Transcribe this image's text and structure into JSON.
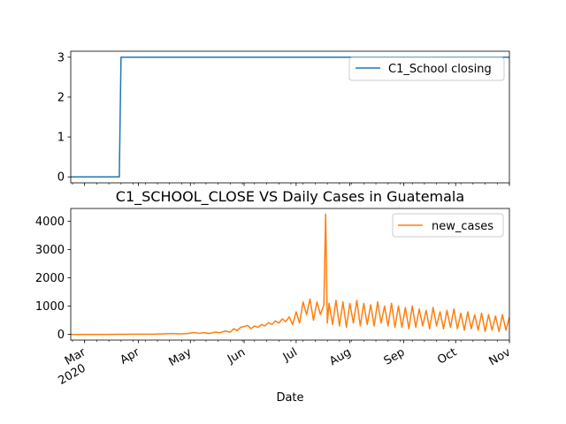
{
  "chart_data": [
    {
      "type": "line",
      "title": "",
      "xlabel": "",
      "ylabel": "",
      "ylim": [
        -0.15,
        3.15
      ],
      "yticks": [
        0,
        1,
        2,
        3
      ],
      "legend": {
        "position": "top-right",
        "entries": [
          "C1_School closing"
        ]
      },
      "grid": false,
      "series": [
        {
          "name": "C1_School closing",
          "color": "#1f77b4",
          "x": [
            "2020-02-22",
            "2020-03-21",
            "2020-03-22",
            "2020-11-01"
          ],
          "values": [
            0,
            0,
            3,
            3
          ]
        }
      ]
    },
    {
      "type": "line",
      "title": "C1_SCHOOL_CLOSE VS Daily Cases in Guatemala",
      "xlabel": "Date",
      "ylabel": "",
      "ylim": [
        -200,
        4450
      ],
      "yticks": [
        0,
        1000,
        2000,
        3000,
        4000
      ],
      "legend": {
        "position": "top-right",
        "entries": [
          "new_cases"
        ]
      },
      "grid": false,
      "x_tick_labels": [
        {
          "date": "2020-03-01",
          "label": "Mar",
          "sub": "2020"
        },
        {
          "date": "2020-04-01",
          "label": "Apr",
          "sub": ""
        },
        {
          "date": "2020-05-01",
          "label": "May",
          "sub": ""
        },
        {
          "date": "2020-06-01",
          "label": "Jun",
          "sub": ""
        },
        {
          "date": "2020-07-01",
          "label": "Jul",
          "sub": ""
        },
        {
          "date": "2020-08-01",
          "label": "Aug",
          "sub": ""
        },
        {
          "date": "2020-09-01",
          "label": "Sep",
          "sub": ""
        },
        {
          "date": "2020-10-01",
          "label": "Oct",
          "sub": ""
        },
        {
          "date": "2020-11-01",
          "label": "Nov",
          "sub": ""
        }
      ],
      "series": [
        {
          "name": "new_cases",
          "color": "#ff7f0e",
          "x": [
            "2020-02-22",
            "2020-03-13",
            "2020-03-27",
            "2020-04-10",
            "2020-04-15",
            "2020-04-20",
            "2020-04-25",
            "2020-04-30",
            "2020-05-03",
            "2020-05-06",
            "2020-05-09",
            "2020-05-12",
            "2020-05-15",
            "2020-05-18",
            "2020-05-21",
            "2020-05-24",
            "2020-05-26",
            "2020-05-28",
            "2020-05-30",
            "2020-06-01",
            "2020-06-03",
            "2020-06-05",
            "2020-06-07",
            "2020-06-09",
            "2020-06-11",
            "2020-06-13",
            "2020-06-15",
            "2020-06-17",
            "2020-06-19",
            "2020-06-21",
            "2020-06-23",
            "2020-06-25",
            "2020-06-27",
            "2020-06-29",
            "2020-07-01",
            "2020-07-03",
            "2020-07-05",
            "2020-07-07",
            "2020-07-09",
            "2020-07-11",
            "2020-07-13",
            "2020-07-15",
            "2020-07-17",
            "2020-07-18",
            "2020-07-19",
            "2020-07-20",
            "2020-07-22",
            "2020-07-24",
            "2020-07-26",
            "2020-07-28",
            "2020-07-30",
            "2020-08-01",
            "2020-08-03",
            "2020-08-05",
            "2020-08-07",
            "2020-08-09",
            "2020-08-11",
            "2020-08-13",
            "2020-08-15",
            "2020-08-17",
            "2020-08-19",
            "2020-08-21",
            "2020-08-23",
            "2020-08-25",
            "2020-08-27",
            "2020-08-29",
            "2020-08-31",
            "2020-09-02",
            "2020-09-04",
            "2020-09-06",
            "2020-09-08",
            "2020-09-10",
            "2020-09-12",
            "2020-09-14",
            "2020-09-16",
            "2020-09-18",
            "2020-09-20",
            "2020-09-22",
            "2020-09-24",
            "2020-09-26",
            "2020-09-28",
            "2020-09-30",
            "2020-10-02",
            "2020-10-04",
            "2020-10-06",
            "2020-10-08",
            "2020-10-10",
            "2020-10-12",
            "2020-10-14",
            "2020-10-16",
            "2020-10-18",
            "2020-10-20",
            "2020-10-22",
            "2020-10-24",
            "2020-10-26",
            "2020-10-28",
            "2020-10-30",
            "2020-11-01"
          ],
          "values": [
            0,
            0,
            5,
            10,
            20,
            30,
            20,
            35,
            70,
            40,
            60,
            30,
            80,
            60,
            120,
            80,
            200,
            130,
            250,
            280,
            320,
            200,
            300,
            250,
            350,
            300,
            420,
            350,
            480,
            400,
            550,
            450,
            620,
            350,
            800,
            400,
            1150,
            700,
            1250,
            500,
            1150,
            700,
            1050,
            4250,
            400,
            1100,
            350,
            1200,
            300,
            1150,
            250,
            1100,
            400,
            1200,
            300,
            1100,
            350,
            1050,
            300,
            1150,
            400,
            1000,
            300,
            1100,
            250,
            1000,
            250,
            950,
            200,
            1000,
            250,
            900,
            300,
            850,
            200,
            950,
            300,
            800,
            200,
            850,
            250,
            900,
            200,
            750,
            150,
            800,
            200,
            700,
            150,
            750,
            100,
            700,
            150,
            650,
            100,
            700,
            150,
            600
          ]
        }
      ]
    }
  ]
}
